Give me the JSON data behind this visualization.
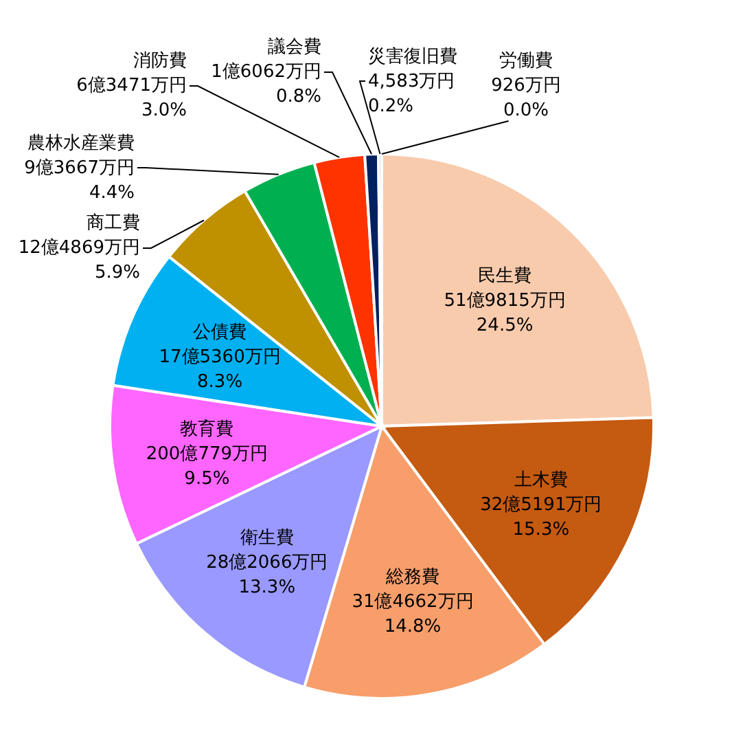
{
  "chart_data": {
    "type": "pie",
    "categories": [
      "民生費",
      "土木費",
      "総務費",
      "衛生費",
      "教育費",
      "公債費",
      "商工費",
      "農林水産業費",
      "消防費",
      "議会費",
      "災害復旧費",
      "労働費"
    ],
    "values": [
      24.5,
      15.3,
      14.8,
      13.3,
      9.5,
      8.3,
      5.9,
      4.4,
      3.0,
      0.8,
      0.2,
      0.0
    ],
    "colors": [
      "#f8cbad",
      "#c55a11",
      "#f79e6b",
      "#9999ff",
      "#ff66ff",
      "#00b0f0",
      "#bf9000",
      "#00b050",
      "#ff3300",
      "#002060",
      "#bdd7ee",
      "#f2f2f2"
    ],
    "data_labels": true,
    "value_labels": [
      "24.5%",
      "15.3%",
      "14.8%",
      "13.3%",
      "9.5%",
      "8.3%",
      "5.9%",
      "4.4%",
      "3.0%",
      "0.8%",
      "0.2%",
      "0.0%"
    ],
    "annotations": [
      {
        "text": "51億9815万円",
        "x": "民生費"
      },
      {
        "text": "32億5191万円",
        "x": "土木費"
      },
      {
        "text": "31億4662万円",
        "x": "総務費"
      },
      {
        "text": "28億2066万円",
        "x": "衛生費"
      },
      {
        "text": "200億779万円",
        "x": "教育費"
      },
      {
        "text": "17億5360万円",
        "x": "公債費"
      },
      {
        "text": "12億4869万円",
        "x": "商工費"
      },
      {
        "text": "9億3667万円",
        "x": "農林水産業費"
      },
      {
        "text": "6億3471万円",
        "x": "消防費"
      },
      {
        "text": "1億6062万円",
        "x": "議会費"
      },
      {
        "text": "4,583万円",
        "x": "災害復旧費"
      },
      {
        "text": "926万円",
        "x": "労働費"
      }
    ]
  }
}
